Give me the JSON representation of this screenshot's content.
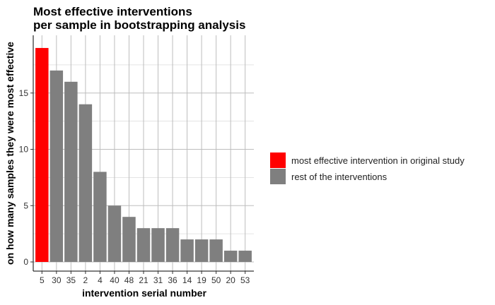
{
  "chart_data": {
    "type": "bar",
    "title_lines": [
      "Most effective interventions",
      "per sample in bootstrapping analysis"
    ],
    "xlabel": "intervention serial number",
    "ylabel": "on how many samples they were most effective",
    "categories": [
      "5",
      "30",
      "35",
      "2",
      "4",
      "40",
      "48",
      "21",
      "31",
      "36",
      "14",
      "19",
      "50",
      "20",
      "53"
    ],
    "values": [
      19,
      17,
      16,
      14,
      8,
      5,
      4,
      3,
      3,
      3,
      2,
      2,
      2,
      1,
      1
    ],
    "groups": [
      "most effective intervention in original study",
      "rest of the interventions",
      "rest of the interventions",
      "rest of the interventions",
      "rest of the interventions",
      "rest of the interventions",
      "rest of the interventions",
      "rest of the interventions",
      "rest of the interventions",
      "rest of the interventions",
      "rest of the interventions",
      "rest of the interventions",
      "rest of the interventions",
      "rest of the interventions",
      "rest of the interventions"
    ],
    "ylim": [
      0,
      20
    ],
    "yticks": [
      0,
      5,
      10,
      15
    ],
    "grid": true,
    "legend": {
      "placement": "right",
      "entries": [
        {
          "label": "most effective intervention in original study",
          "color": "#ff0000"
        },
        {
          "label": "rest of the interventions",
          "color": "#7f7f7f"
        }
      ]
    }
  }
}
